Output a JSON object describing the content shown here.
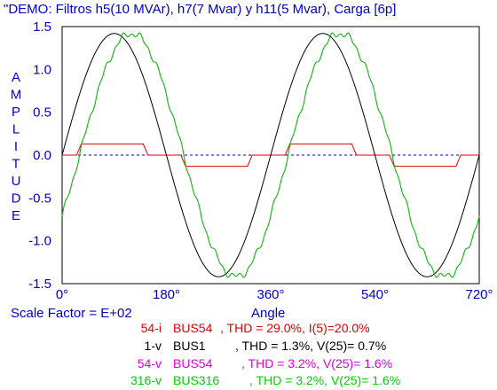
{
  "chart_data": {
    "type": "line",
    "title": "\"DEMO: Filtros h5(10 MVAr), h7(7 Mvar) y h11(5 Mvar), Carga [6p]",
    "xlabel": "Angle",
    "ylabel": "AMPLITUDE",
    "scale_factor": "Scale Factor = E+02",
    "xlim": [
      0,
      720
    ],
    "ylim": [
      -1.5,
      1.5
    ],
    "x_ticks": [
      0,
      180,
      360,
      540,
      720
    ],
    "x_tick_labels": [
      "0°",
      "180°",
      "360°",
      "540°",
      "720°"
    ],
    "y_ticks": [
      1.5,
      1.0,
      0.5,
      0.0,
      -0.5,
      -1.0,
      -1.5
    ],
    "y_tick_labels": [
      "1.5",
      "1.0",
      "0.5",
      "0.0",
      "-0.5",
      "-1.0",
      "-1.5"
    ],
    "zero_line": true,
    "grid": false,
    "series": [
      {
        "name": "54-i",
        "bus": "BUS54",
        "stats": ", THD = 29.0%, I(5)=20.0%",
        "color": "#e00000",
        "shape": "six-pulse-current",
        "amplitude": 0.13,
        "phase_deg": 0
      },
      {
        "name": "1-v",
        "bus": "BUS1",
        "stats": ", THD =  1.3%, V(25)= 0.7%",
        "color": "#000000",
        "shape": "sine",
        "amplitude": 1.42,
        "phase_deg": 0
      },
      {
        "name": "54-v",
        "bus": "BUS54",
        "stats": ", THD =  3.2%, V(25)= 1.6%",
        "color": "#e000e0",
        "shape": "sine-distorted",
        "amplitude": 1.42,
        "phase_deg": -30
      },
      {
        "name": "316-v",
        "bus": "BUS316",
        "stats": ", THD =  3.2%, V(25)= 1.6%",
        "color": "#00d000",
        "shape": "sine-distorted",
        "amplitude": 1.42,
        "phase_deg": -30
      }
    ]
  }
}
